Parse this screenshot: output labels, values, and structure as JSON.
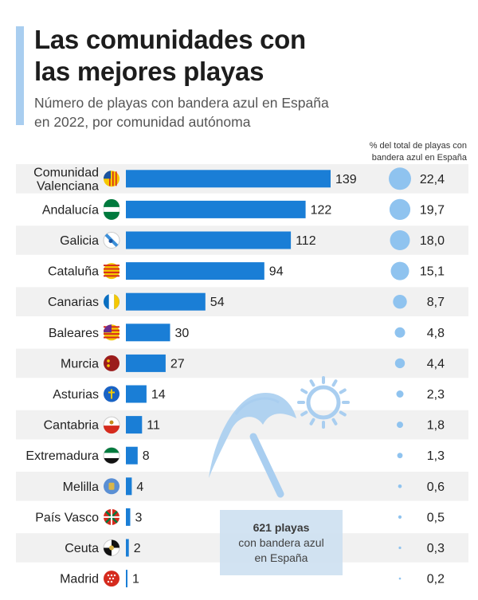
{
  "header": {
    "title_line1": "Las comunidades con",
    "title_line2": "las mejores playas",
    "subtitle_line1": "Número de playas con bandera azul en España",
    "subtitle_line2": "en 2022, por comunidad autónoma",
    "column_header_line1": "% del total de playas con",
    "column_header_line2": "bandera azul en España"
  },
  "total_box": {
    "strong": "621 playas",
    "line1": "con bandera azul",
    "line2": "en España"
  },
  "colors": {
    "bar": "#1a7ed6",
    "bubble": "#8fc3ef",
    "row_shade": "#f1f1f1",
    "accent": "#a9cef0",
    "decoration": "#a9cef0"
  },
  "chart_data": {
    "type": "bar",
    "orientation": "horizontal",
    "title": "Las comunidades con las mejores playas",
    "subtitle": "Número de playas con bandera azul en España en 2022, por comunidad autónoma",
    "categories": [
      [
        "Comunidad",
        "Valenciana"
      ],
      [
        "Andalucía"
      ],
      [
        "Galicia"
      ],
      [
        "Cataluña"
      ],
      [
        "Canarias"
      ],
      [
        "Baleares"
      ],
      [
        "Murcia"
      ],
      [
        "Asturias"
      ],
      [
        "Cantabria"
      ],
      [
        "Extremadura"
      ],
      [
        "Melilla"
      ],
      [
        "País Vasco"
      ],
      [
        "Ceuta"
      ],
      [
        "Madrid"
      ]
    ],
    "values": [
      139,
      122,
      112,
      94,
      54,
      30,
      27,
      14,
      11,
      8,
      4,
      3,
      2,
      1
    ],
    "percent_labels": [
      "22,4",
      "19,7",
      "18,0",
      "15,1",
      "8,7",
      "4,8",
      "4,4",
      "2,3",
      "1,8",
      "1,3",
      "0,6",
      "0,5",
      "0,3",
      "0,2"
    ],
    "percent_values": [
      22.4,
      19.7,
      18.0,
      15.1,
      8.7,
      4.8,
      4.4,
      2.3,
      1.8,
      1.3,
      0.6,
      0.5,
      0.3,
      0.2
    ],
    "xlim": [
      0,
      139
    ],
    "flag_icons": [
      "valencia-flag-icon",
      "andalucia-flag-icon",
      "galicia-flag-icon",
      "cataluna-flag-icon",
      "canarias-flag-icon",
      "baleares-flag-icon",
      "murcia-flag-icon",
      "asturias-flag-icon",
      "cantabria-flag-icon",
      "extremadura-flag-icon",
      "melilla-flag-icon",
      "pais-vasco-flag-icon",
      "ceuta-flag-icon",
      "madrid-flag-icon"
    ]
  }
}
